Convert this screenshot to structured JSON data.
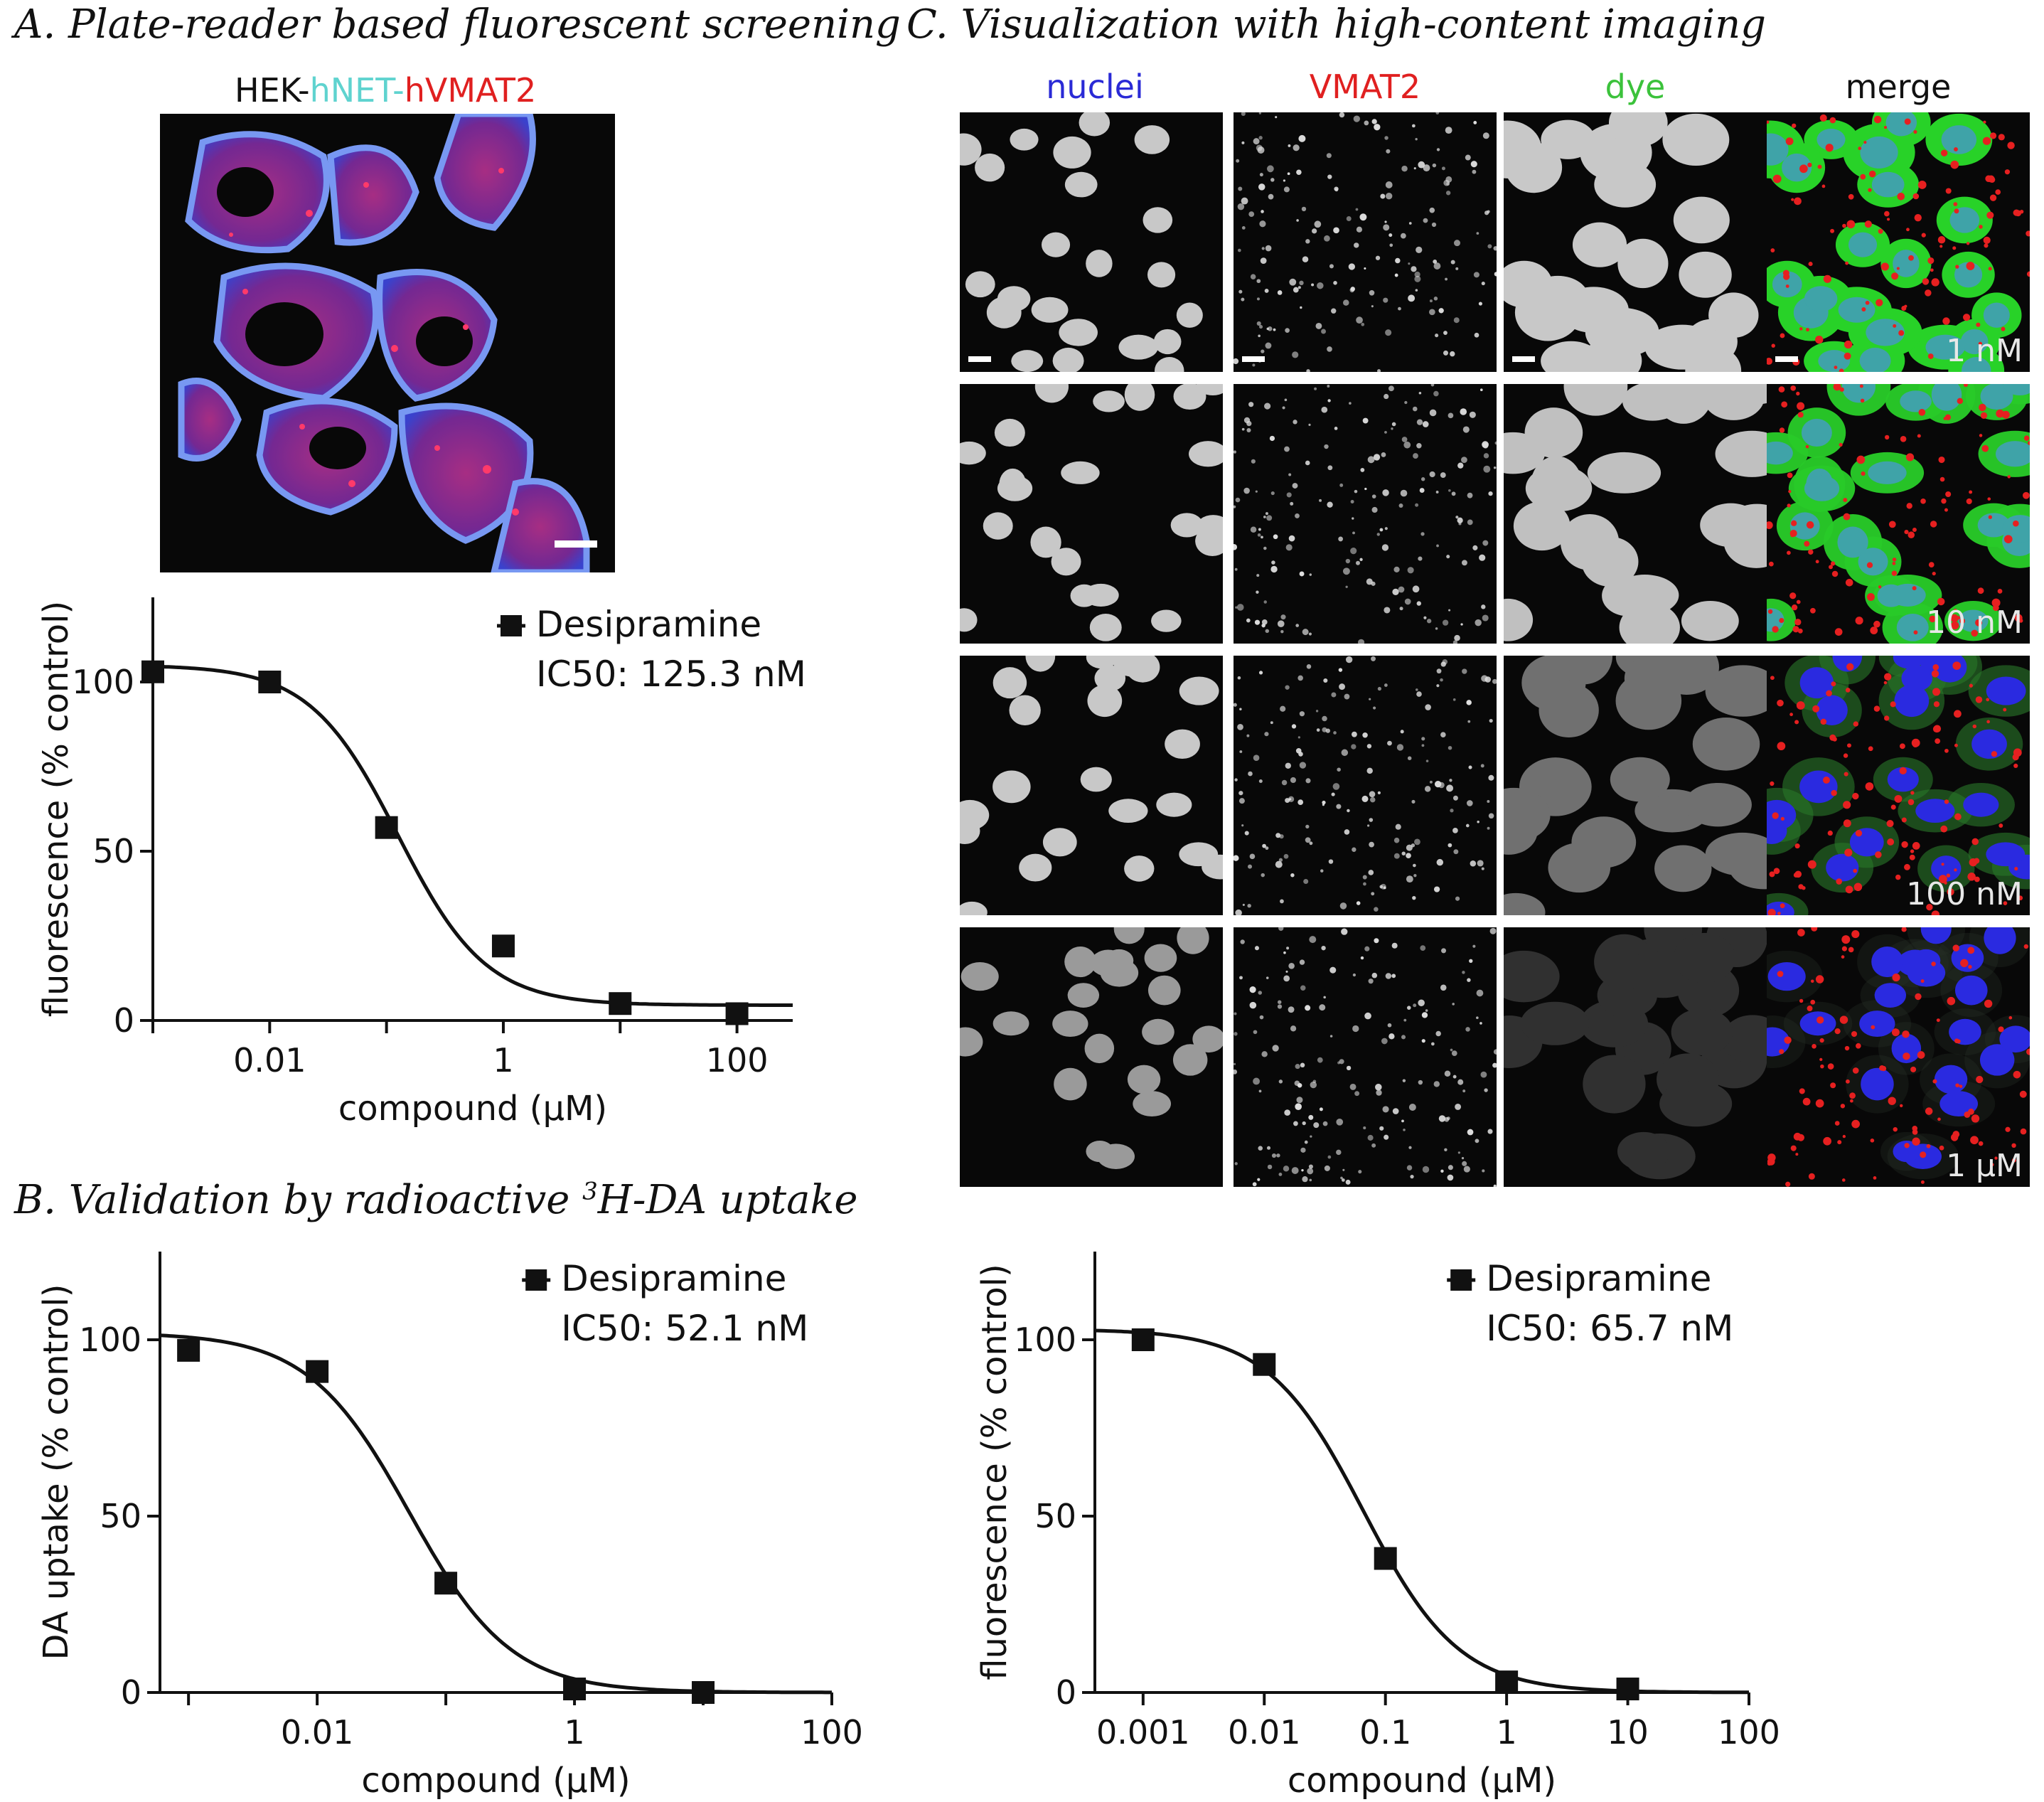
{
  "panels": {
    "a_title": "A. Plate-reader based fluorescent screening",
    "b_title": "B. Validation by radioactive 3H-DA uptake",
    "c_title": "C. Visualization with high-content imaging"
  },
  "hek_label": {
    "prefix": "HEK-",
    "net": "hNET",
    "dash": "-",
    "vmat": "hVMAT2"
  },
  "imaging": {
    "columns": [
      "nuclei",
      "VMAT2",
      "dye",
      "merge"
    ],
    "column_colors": [
      "#2a2ad6",
      "#e02020",
      "#3bc23b",
      "#111111"
    ],
    "concentrations": [
      "1 nM",
      "10 nM",
      "100 nM",
      "1 µM"
    ]
  },
  "chart_data": [
    {
      "id": "A",
      "type": "scatter",
      "xlabel": "compound (µM)",
      "ylabel": "fluorescence (% control)",
      "x_scale": "log",
      "xlim": [
        0.001,
        300
      ],
      "xticks": [
        0.01,
        1,
        100
      ],
      "xtick_labels": [
        "0.01",
        "1",
        "100"
      ],
      "ylim": [
        0,
        125
      ],
      "yticks": [
        0,
        50,
        100
      ],
      "series": [
        {
          "name": "Desipramine",
          "annotation": "IC50: 125.3 nM",
          "x": [
            0.001,
            0.01,
            0.1,
            1,
            10,
            100
          ],
          "y": [
            103,
            100,
            57,
            22,
            5,
            2
          ],
          "fit": {
            "top": 105,
            "bottom": 4.5,
            "ic50": 0.1253,
            "hill": 1.15
          }
        }
      ]
    },
    {
      "id": "B",
      "type": "scatter",
      "xlabel": "compound (µM)",
      "ylabel": "DA uptake (% control)",
      "x_scale": "log",
      "xlim": [
        0.0006,
        100
      ],
      "xticks": [
        0.01,
        1,
        100
      ],
      "xtick_labels": [
        "0.01",
        "1",
        "100"
      ],
      "ylim": [
        0,
        125
      ],
      "yticks": [
        0,
        50,
        100
      ],
      "series": [
        {
          "name": "Desipramine",
          "annotation": "IC50: 52.1 nM",
          "x": [
            0.001,
            0.01,
            0.1,
            1,
            10
          ],
          "y": [
            97,
            91,
            31,
            1,
            0
          ],
          "fit": {
            "top": 102,
            "bottom": 0,
            "ic50": 0.0521,
            "hill": 1.1
          }
        }
      ]
    },
    {
      "id": "C",
      "type": "scatter",
      "xlabel": "compound (µM)",
      "ylabel": "fluorescence (% control)",
      "x_scale": "log",
      "xlim": [
        0.0004,
        100
      ],
      "xticks": [
        0.001,
        0.01,
        0.1,
        1,
        10,
        100
      ],
      "xtick_labels": [
        "0.001",
        "0.01",
        "0.1",
        "1",
        "10",
        "100"
      ],
      "ylim": [
        0,
        125
      ],
      "yticks": [
        0,
        50,
        100
      ],
      "series": [
        {
          "name": "Desipramine",
          "annotation": "IC50: 65.7 nM",
          "x": [
            0.001,
            0.01,
            0.1,
            1,
            10
          ],
          "y": [
            100,
            93,
            38,
            3,
            1
          ],
          "fit": {
            "top": 103,
            "bottom": 0,
            "ic50": 0.0657,
            "hill": 1.1
          }
        }
      ]
    }
  ]
}
